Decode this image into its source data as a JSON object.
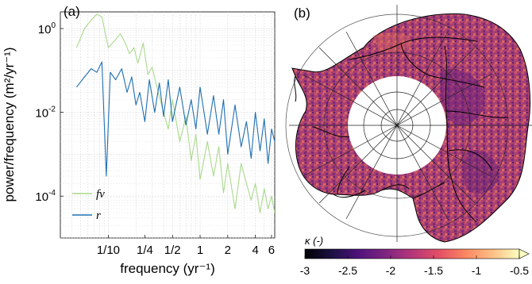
{
  "panel_a": {
    "label": "(a)"
  },
  "panel_b": {
    "label": "(b)"
  },
  "colors": {
    "fv": "#a9d98c",
    "r": "#1f6fb2",
    "coast": "#000000"
  },
  "chart_data": [
    {
      "type": "line",
      "panel": "(a)",
      "xlabel": "frequency (yr⁻¹)",
      "ylabel": "power/frequency (m²/yr⁻¹)",
      "x_scale": "log",
      "y_scale": "log",
      "xlim": [
        0.03,
        6.5
      ],
      "ylim": [
        1e-05,
        2.5
      ],
      "xticks": [
        {
          "value": 0.1,
          "label": "1/10"
        },
        {
          "value": 0.25,
          "label": "1/4"
        },
        {
          "value": 0.5,
          "label": "1/2"
        },
        {
          "value": 1,
          "label": "1"
        },
        {
          "value": 2,
          "label": "2"
        },
        {
          "value": 4,
          "label": "4"
        },
        {
          "value": 6,
          "label": "6"
        }
      ],
      "yticks": [
        {
          "value": 1,
          "label": "10^0"
        },
        {
          "value": 0.01,
          "label": "10^-2"
        },
        {
          "value": 0.0001,
          "label": "10^-4"
        }
      ],
      "grid": true,
      "legend_position": "bottom-left",
      "series": [
        {
          "name": "fv",
          "color": "#a9d98c",
          "x": [
            0.045,
            0.055,
            0.065,
            0.075,
            0.085,
            0.1,
            0.12,
            0.135,
            0.15,
            0.17,
            0.19,
            0.21,
            0.24,
            0.27,
            0.3,
            0.35,
            0.4,
            0.45,
            0.5,
            0.6,
            0.7,
            0.8,
            0.9,
            1.0,
            1.2,
            1.4,
            1.6,
            1.8,
            2.0,
            2.4,
            2.8,
            3.2,
            3.6,
            4.0,
            4.5,
            5.0,
            5.5,
            6.0,
            6.5
          ],
          "y": [
            0.35,
            1.0,
            1.6,
            2.2,
            1.9,
            0.35,
            0.55,
            0.75,
            0.5,
            0.25,
            0.35,
            0.15,
            0.45,
            0.08,
            0.12,
            0.03,
            0.01,
            0.004,
            0.02,
            0.002,
            0.008,
            0.0007,
            0.003,
            0.00025,
            0.002,
            0.0003,
            0.0015,
            0.00012,
            0.0006,
            5e-05,
            0.0006,
            0.0002,
            8e-05,
            0.0002,
            4e-05,
            0.00015,
            5e-05,
            0.0001,
            4e-05
          ]
        },
        {
          "name": "r",
          "color": "#1f6fb2",
          "x": [
            0.045,
            0.055,
            0.065,
            0.075,
            0.085,
            0.095,
            0.105,
            0.12,
            0.14,
            0.16,
            0.18,
            0.2,
            0.22,
            0.25,
            0.28,
            0.32,
            0.36,
            0.4,
            0.45,
            0.5,
            0.6,
            0.7,
            0.8,
            0.9,
            1.0,
            1.2,
            1.4,
            1.6,
            1.8,
            2.0,
            2.4,
            2.8,
            3.2,
            3.6,
            4.0,
            4.5,
            5.0,
            5.5,
            6.0,
            6.5
          ],
          "y": [
            0.04,
            0.07,
            0.11,
            0.09,
            0.16,
            0.0003,
            0.09,
            0.06,
            0.11,
            0.03,
            0.07,
            0.015,
            0.03,
            0.006,
            0.06,
            0.01,
            0.05,
            0.008,
            0.06,
            0.006,
            0.04,
            0.005,
            0.02,
            0.004,
            0.04,
            0.003,
            0.025,
            0.003,
            0.02,
            0.001,
            0.015,
            0.0015,
            0.006,
            0.0008,
            0.01,
            0.0012,
            0.007,
            0.0006,
            0.004,
            0.002
          ]
        }
      ]
    },
    {
      "type": "heatmap",
      "panel": "(b)",
      "variable": "κ (-)",
      "colorbar": {
        "label": "κ (-)",
        "min": -3,
        "max": -0.5,
        "ticks": [
          {
            "value": -3,
            "label": "-3"
          },
          {
            "value": -2.5,
            "label": "-2.5"
          },
          {
            "value": -2,
            "label": "-2"
          },
          {
            "value": -1.5,
            "label": "-1.5"
          },
          {
            "value": -1,
            "label": "-1"
          },
          {
            "value": -0.5,
            "label": "-0.5"
          }
        ],
        "extend": "max",
        "colormap": "magma"
      }
    }
  ]
}
